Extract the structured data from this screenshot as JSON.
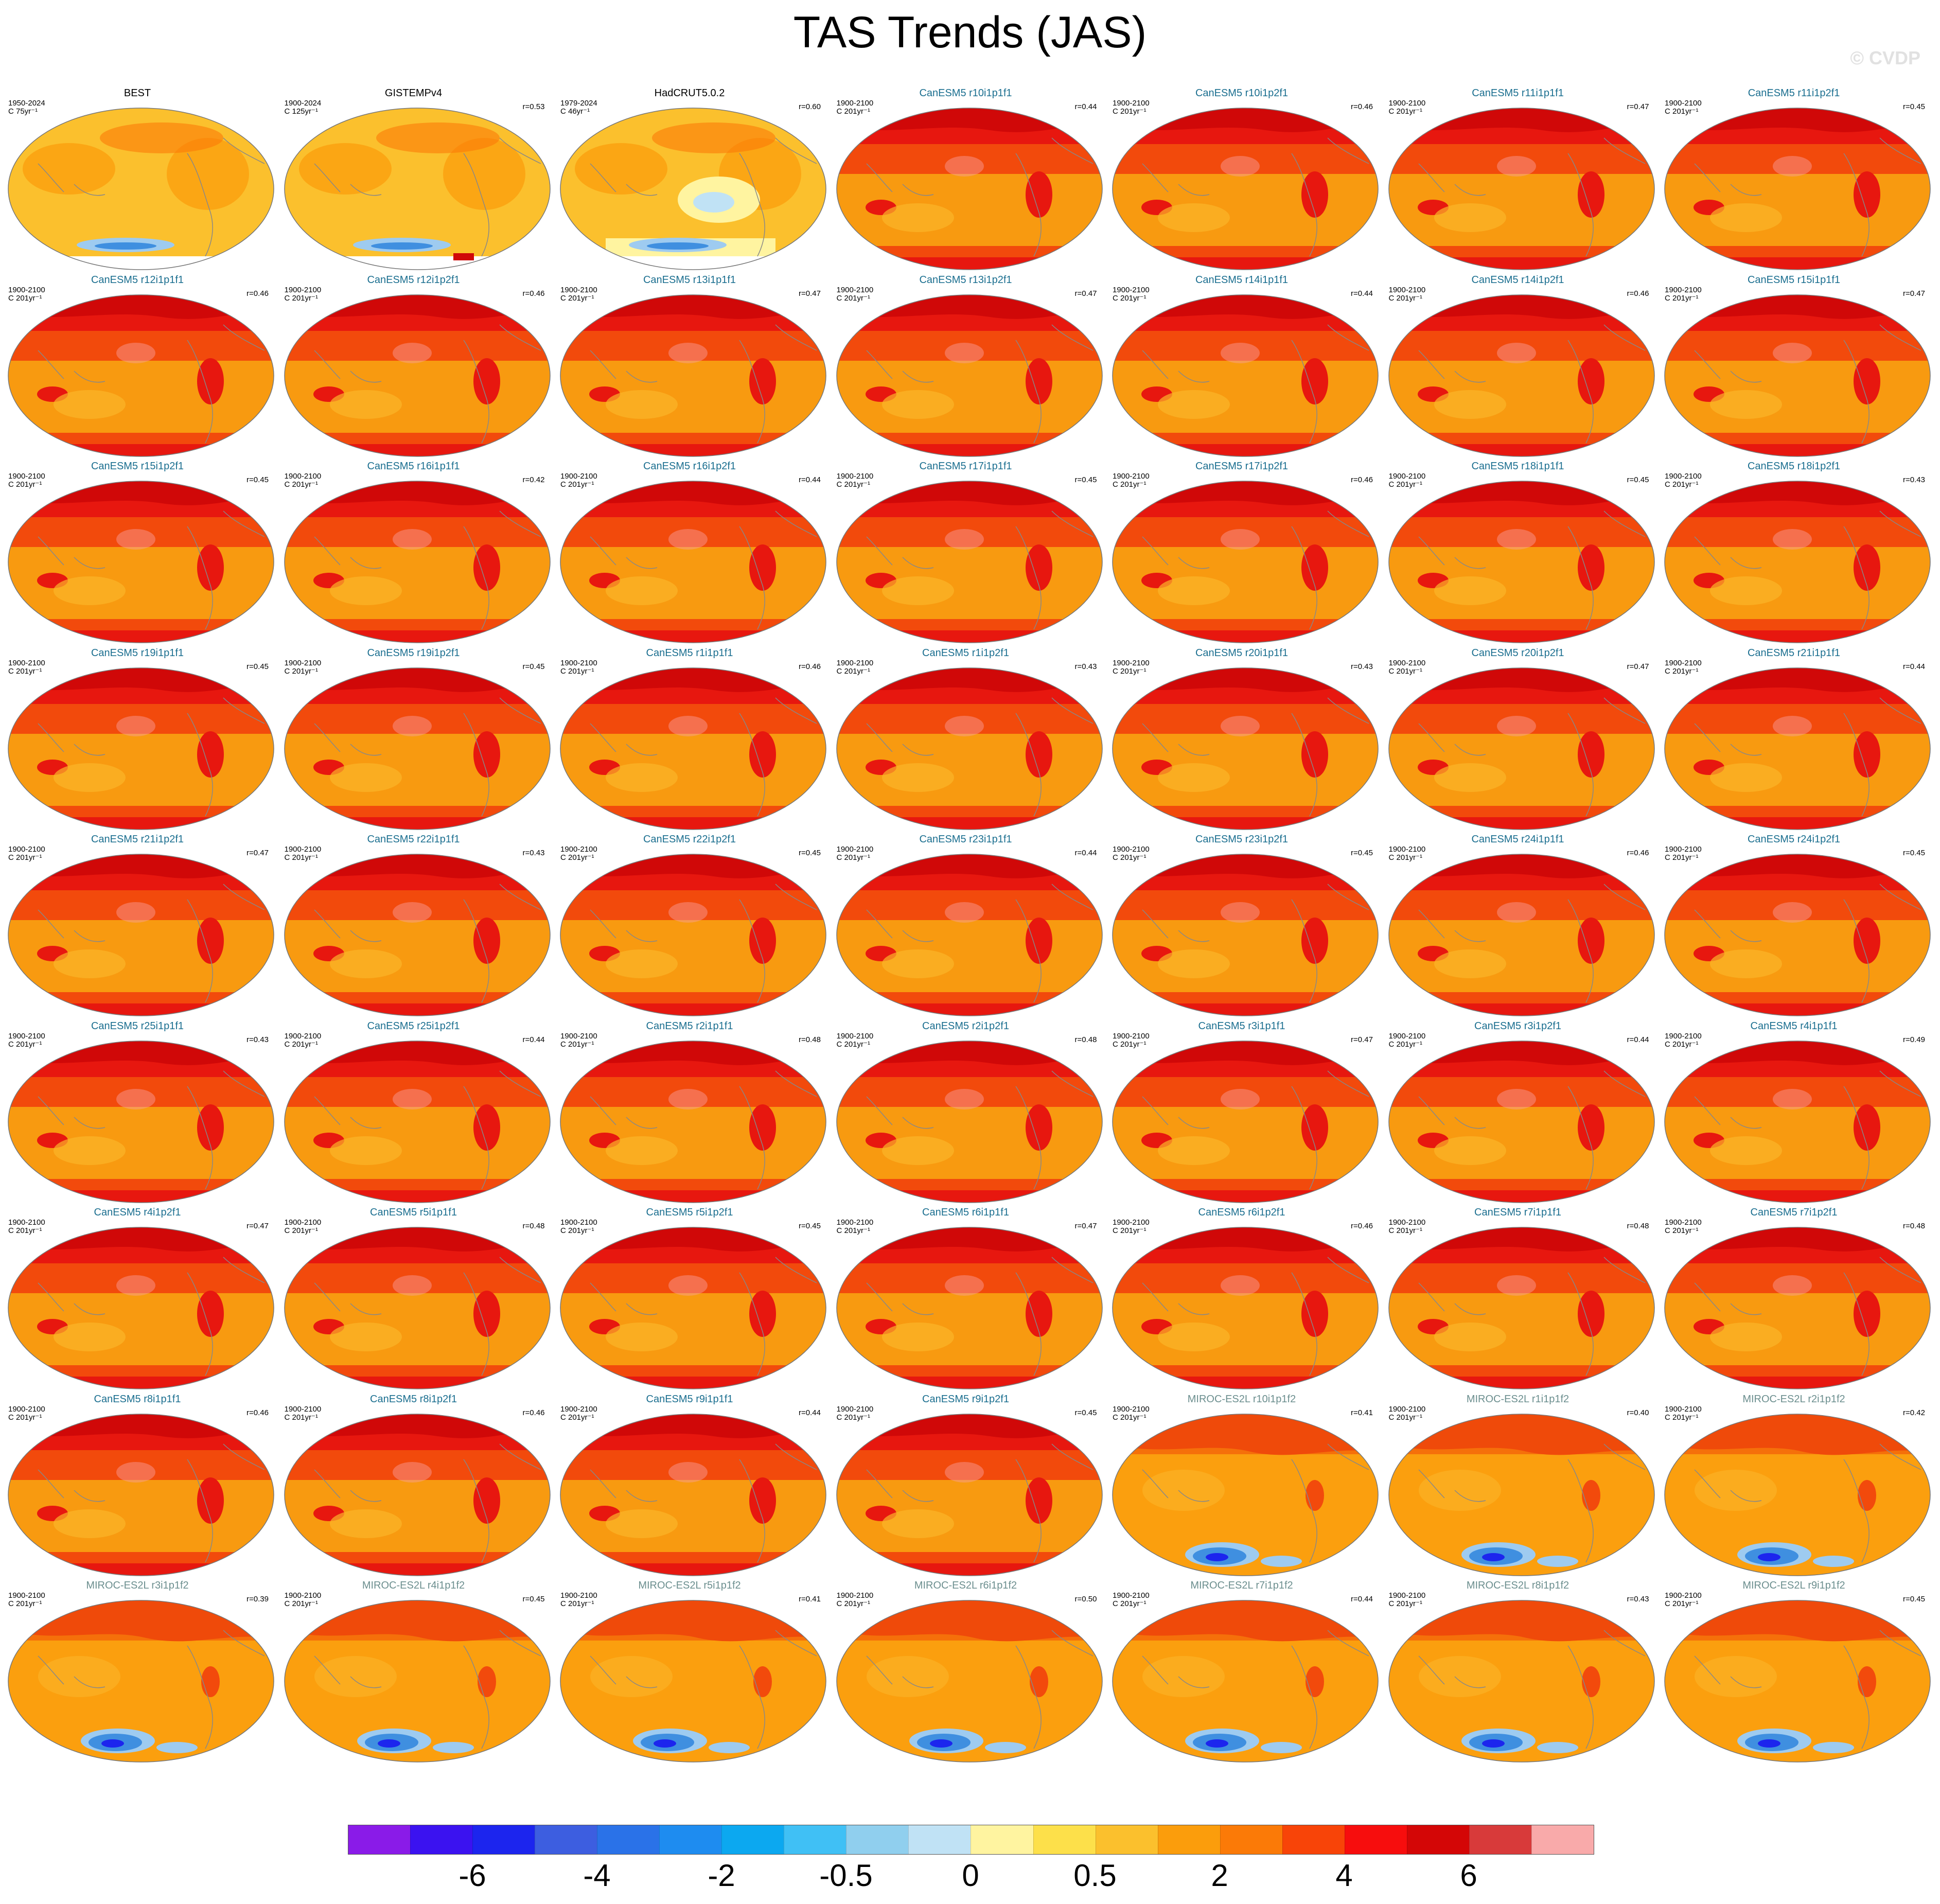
{
  "title": "TAS Trends (JAS)",
  "copyright": "© CVDP",
  "colors": {
    "cold_patch": "#3f8fe0",
    "cold_patch_light": "#9ecbf0",
    "ice_white": "#ffffff"
  },
  "panels": [
    {
      "title": "BEST",
      "title_color": "#000000",
      "period": "1950-2024",
      "units": "C 75yr⁻¹",
      "r": "",
      "type": "obs1"
    },
    {
      "title": "GISTEMPv4",
      "title_color": "#000000",
      "period": "1900-2024",
      "units": "C 125yr⁻¹",
      "r": "r=0.53",
      "type": "obs2"
    },
    {
      "title": "HadCRUT5.0.2",
      "title_color": "#000000",
      "period": "1979-2024",
      "units": "C 46yr⁻¹",
      "r": "r=0.60",
      "type": "obs3"
    },
    {
      "title": "CanESM5 r10i1p1f1",
      "title_color": "#1a6e8f",
      "period": "1900-2100",
      "units": "C 201yr⁻¹",
      "r": "r=0.44",
      "type": "can"
    },
    {
      "title": "CanESM5 r10i1p2f1",
      "title_color": "#1a6e8f",
      "period": "1900-2100",
      "units": "C 201yr⁻¹",
      "r": "r=0.46",
      "type": "can"
    },
    {
      "title": "CanESM5 r11i1p1f1",
      "title_color": "#1a6e8f",
      "period": "1900-2100",
      "units": "C 201yr⁻¹",
      "r": "r=0.47",
      "type": "can"
    },
    {
      "title": "CanESM5 r11i1p2f1",
      "title_color": "#1a6e8f",
      "period": "1900-2100",
      "units": "C 201yr⁻¹",
      "r": "r=0.45",
      "type": "can"
    },
    {
      "title": "CanESM5 r12i1p1f1",
      "title_color": "#1a6e8f",
      "period": "1900-2100",
      "units": "C 201yr⁻¹",
      "r": "r=0.46",
      "type": "can"
    },
    {
      "title": "CanESM5 r12i1p2f1",
      "title_color": "#1a6e8f",
      "period": "1900-2100",
      "units": "C 201yr⁻¹",
      "r": "r=0.46",
      "type": "can"
    },
    {
      "title": "CanESM5 r13i1p1f1",
      "title_color": "#1a6e8f",
      "period": "1900-2100",
      "units": "C 201yr⁻¹",
      "r": "r=0.47",
      "type": "can"
    },
    {
      "title": "CanESM5 r13i1p2f1",
      "title_color": "#1a6e8f",
      "period": "1900-2100",
      "units": "C 201yr⁻¹",
      "r": "r=0.47",
      "type": "can"
    },
    {
      "title": "CanESM5 r14i1p1f1",
      "title_color": "#1a6e8f",
      "period": "1900-2100",
      "units": "C 201yr⁻¹",
      "r": "r=0.44",
      "type": "can"
    },
    {
      "title": "CanESM5 r14i1p2f1",
      "title_color": "#1a6e8f",
      "period": "1900-2100",
      "units": "C 201yr⁻¹",
      "r": "r=0.46",
      "type": "can"
    },
    {
      "title": "CanESM5 r15i1p1f1",
      "title_color": "#1a6e8f",
      "period": "1900-2100",
      "units": "C 201yr⁻¹",
      "r": "r=0.47",
      "type": "can"
    },
    {
      "title": "CanESM5 r15i1p2f1",
      "title_color": "#1a6e8f",
      "period": "1900-2100",
      "units": "C 201yr⁻¹",
      "r": "r=0.45",
      "type": "can"
    },
    {
      "title": "CanESM5 r16i1p1f1",
      "title_color": "#1a6e8f",
      "period": "1900-2100",
      "units": "C 201yr⁻¹",
      "r": "r=0.42",
      "type": "can"
    },
    {
      "title": "CanESM5 r16i1p2f1",
      "title_color": "#1a6e8f",
      "period": "1900-2100",
      "units": "C 201yr⁻¹",
      "r": "r=0.44",
      "type": "can"
    },
    {
      "title": "CanESM5 r17i1p1f1",
      "title_color": "#1a6e8f",
      "period": "1900-2100",
      "units": "C 201yr⁻¹",
      "r": "r=0.45",
      "type": "can"
    },
    {
      "title": "CanESM5 r17i1p2f1",
      "title_color": "#1a6e8f",
      "period": "1900-2100",
      "units": "C 201yr⁻¹",
      "r": "r=0.46",
      "type": "can"
    },
    {
      "title": "CanESM5 r18i1p1f1",
      "title_color": "#1a6e8f",
      "period": "1900-2100",
      "units": "C 201yr⁻¹",
      "r": "r=0.45",
      "type": "can"
    },
    {
      "title": "CanESM5 r18i1p2f1",
      "title_color": "#1a6e8f",
      "period": "1900-2100",
      "units": "C 201yr⁻¹",
      "r": "r=0.43",
      "type": "can"
    },
    {
      "title": "CanESM5 r19i1p1f1",
      "title_color": "#1a6e8f",
      "period": "1900-2100",
      "units": "C 201yr⁻¹",
      "r": "r=0.45",
      "type": "can"
    },
    {
      "title": "CanESM5 r19i1p2f1",
      "title_color": "#1a6e8f",
      "period": "1900-2100",
      "units": "C 201yr⁻¹",
      "r": "r=0.45",
      "type": "can"
    },
    {
      "title": "CanESM5 r1i1p1f1",
      "title_color": "#1a6e8f",
      "period": "1900-2100",
      "units": "C 201yr⁻¹",
      "r": "r=0.46",
      "type": "can"
    },
    {
      "title": "CanESM5 r1i1p2f1",
      "title_color": "#1a6e8f",
      "period": "1900-2100",
      "units": "C 201yr⁻¹",
      "r": "r=0.43",
      "type": "can"
    },
    {
      "title": "CanESM5 r20i1p1f1",
      "title_color": "#1a6e8f",
      "period": "1900-2100",
      "units": "C 201yr⁻¹",
      "r": "r=0.43",
      "type": "can"
    },
    {
      "title": "CanESM5 r20i1p2f1",
      "title_color": "#1a6e8f",
      "period": "1900-2100",
      "units": "C 201yr⁻¹",
      "r": "r=0.47",
      "type": "can"
    },
    {
      "title": "CanESM5 r21i1p1f1",
      "title_color": "#1a6e8f",
      "period": "1900-2100",
      "units": "C 201yr⁻¹",
      "r": "r=0.44",
      "type": "can"
    },
    {
      "title": "CanESM5 r21i1p2f1",
      "title_color": "#1a6e8f",
      "period": "1900-2100",
      "units": "C 201yr⁻¹",
      "r": "r=0.47",
      "type": "can"
    },
    {
      "title": "CanESM5 r22i1p1f1",
      "title_color": "#1a6e8f",
      "period": "1900-2100",
      "units": "C 201yr⁻¹",
      "r": "r=0.43",
      "type": "can"
    },
    {
      "title": "CanESM5 r22i1p2f1",
      "title_color": "#1a6e8f",
      "period": "1900-2100",
      "units": "C 201yr⁻¹",
      "r": "r=0.45",
      "type": "can"
    },
    {
      "title": "CanESM5 r23i1p1f1",
      "title_color": "#1a6e8f",
      "period": "1900-2100",
      "units": "C 201yr⁻¹",
      "r": "r=0.44",
      "type": "can"
    },
    {
      "title": "CanESM5 r23i1p2f1",
      "title_color": "#1a6e8f",
      "period": "1900-2100",
      "units": "C 201yr⁻¹",
      "r": "r=0.45",
      "type": "can"
    },
    {
      "title": "CanESM5 r24i1p1f1",
      "title_color": "#1a6e8f",
      "period": "1900-2100",
      "units": "C 201yr⁻¹",
      "r": "r=0.46",
      "type": "can"
    },
    {
      "title": "CanESM5 r24i1p2f1",
      "title_color": "#1a6e8f",
      "period": "1900-2100",
      "units": "C 201yr⁻¹",
      "r": "r=0.45",
      "type": "can"
    },
    {
      "title": "CanESM5 r25i1p1f1",
      "title_color": "#1a6e8f",
      "period": "1900-2100",
      "units": "C 201yr⁻¹",
      "r": "r=0.43",
      "type": "can"
    },
    {
      "title": "CanESM5 r25i1p2f1",
      "title_color": "#1a6e8f",
      "period": "1900-2100",
      "units": "C 201yr⁻¹",
      "r": "r=0.44",
      "type": "can"
    },
    {
      "title": "CanESM5 r2i1p1f1",
      "title_color": "#1a6e8f",
      "period": "1900-2100",
      "units": "C 201yr⁻¹",
      "r": "r=0.48",
      "type": "can"
    },
    {
      "title": "CanESM5 r2i1p2f1",
      "title_color": "#1a6e8f",
      "period": "1900-2100",
      "units": "C 201yr⁻¹",
      "r": "r=0.48",
      "type": "can"
    },
    {
      "title": "CanESM5 r3i1p1f1",
      "title_color": "#1a6e8f",
      "period": "1900-2100",
      "units": "C 201yr⁻¹",
      "r": "r=0.47",
      "type": "can"
    },
    {
      "title": "CanESM5 r3i1p2f1",
      "title_color": "#1a6e8f",
      "period": "1900-2100",
      "units": "C 201yr⁻¹",
      "r": "r=0.44",
      "type": "can"
    },
    {
      "title": "CanESM5 r4i1p1f1",
      "title_color": "#1a6e8f",
      "period": "1900-2100",
      "units": "C 201yr⁻¹",
      "r": "r=0.49",
      "type": "can"
    },
    {
      "title": "CanESM5 r4i1p2f1",
      "title_color": "#1a6e8f",
      "period": "1900-2100",
      "units": "C 201yr⁻¹",
      "r": "r=0.47",
      "type": "can"
    },
    {
      "title": "CanESM5 r5i1p1f1",
      "title_color": "#1a6e8f",
      "period": "1900-2100",
      "units": "C 201yr⁻¹",
      "r": "r=0.48",
      "type": "can"
    },
    {
      "title": "CanESM5 r5i1p2f1",
      "title_color": "#1a6e8f",
      "period": "1900-2100",
      "units": "C 201yr⁻¹",
      "r": "r=0.45",
      "type": "can"
    },
    {
      "title": "CanESM5 r6i1p1f1",
      "title_color": "#1a6e8f",
      "period": "1900-2100",
      "units": "C 201yr⁻¹",
      "r": "r=0.47",
      "type": "can"
    },
    {
      "title": "CanESM5 r6i1p2f1",
      "title_color": "#1a6e8f",
      "period": "1900-2100",
      "units": "C 201yr⁻¹",
      "r": "r=0.46",
      "type": "can"
    },
    {
      "title": "CanESM5 r7i1p1f1",
      "title_color": "#1a6e8f",
      "period": "1900-2100",
      "units": "C 201yr⁻¹",
      "r": "r=0.48",
      "type": "can"
    },
    {
      "title": "CanESM5 r7i1p2f1",
      "title_color": "#1a6e8f",
      "period": "1900-2100",
      "units": "C 201yr⁻¹",
      "r": "r=0.48",
      "type": "can"
    },
    {
      "title": "CanESM5 r8i1p1f1",
      "title_color": "#1a6e8f",
      "period": "1900-2100",
      "units": "C 201yr⁻¹",
      "r": "r=0.46",
      "type": "can"
    },
    {
      "title": "CanESM5 r8i1p2f1",
      "title_color": "#1a6e8f",
      "period": "1900-2100",
      "units": "C 201yr⁻¹",
      "r": "r=0.46",
      "type": "can"
    },
    {
      "title": "CanESM5 r9i1p1f1",
      "title_color": "#1a6e8f",
      "period": "1900-2100",
      "units": "C 201yr⁻¹",
      "r": "r=0.44",
      "type": "can"
    },
    {
      "title": "CanESM5 r9i1p2f1",
      "title_color": "#1a6e8f",
      "period": "1900-2100",
      "units": "C 201yr⁻¹",
      "r": "r=0.45",
      "type": "can"
    },
    {
      "title": "MIROC-ES2L r10i1p1f2",
      "title_color": "#6b8e8e",
      "period": "1900-2100",
      "units": "C 201yr⁻¹",
      "r": "r=0.41",
      "type": "miroc"
    },
    {
      "title": "MIROC-ES2L r1i1p1f2",
      "title_color": "#6b8e8e",
      "period": "1900-2100",
      "units": "C 201yr⁻¹",
      "r": "r=0.40",
      "type": "miroc"
    },
    {
      "title": "MIROC-ES2L r2i1p1f2",
      "title_color": "#6b8e8e",
      "period": "1900-2100",
      "units": "C 201yr⁻¹",
      "r": "r=0.42",
      "type": "miroc"
    },
    {
      "title": "MIROC-ES2L r3i1p1f2",
      "title_color": "#6b8e8e",
      "period": "1900-2100",
      "units": "C 201yr⁻¹",
      "r": "r=0.39",
      "type": "miroc"
    },
    {
      "title": "MIROC-ES2L r4i1p1f2",
      "title_color": "#6b8e8e",
      "period": "1900-2100",
      "units": "C 201yr⁻¹",
      "r": "r=0.45",
      "type": "miroc"
    },
    {
      "title": "MIROC-ES2L r5i1p1f2",
      "title_color": "#6b8e8e",
      "period": "1900-2100",
      "units": "C 201yr⁻¹",
      "r": "r=0.41",
      "type": "miroc"
    },
    {
      "title": "MIROC-ES2L r6i1p1f2",
      "title_color": "#6b8e8e",
      "period": "1900-2100",
      "units": "C 201yr⁻¹",
      "r": "r=0.50",
      "type": "miroc"
    },
    {
      "title": "MIROC-ES2L r7i1p1f2",
      "title_color": "#6b8e8e",
      "period": "1900-2100",
      "units": "C 201yr⁻¹",
      "r": "r=0.44",
      "type": "miroc"
    },
    {
      "title": "MIROC-ES2L r8i1p1f2",
      "title_color": "#6b8e8e",
      "period": "1900-2100",
      "units": "C 201yr⁻¹",
      "r": "r=0.43",
      "type": "miroc"
    },
    {
      "title": "MIROC-ES2L r9i1p1f2",
      "title_color": "#6b8e8e",
      "period": "1900-2100",
      "units": "C 201yr⁻¹",
      "r": "r=0.45",
      "type": "miroc"
    }
  ],
  "colorbar": {
    "colors": [
      "#8a1be8",
      "#3b12f0",
      "#1c25ee",
      "#3d5ee0",
      "#2a72e8",
      "#1e8cf0",
      "#0ca8f0",
      "#40c0f5",
      "#90cfee",
      "#c0e2f5",
      "#fff4a0",
      "#fde04a",
      "#fbc02d",
      "#fb9d0c",
      "#fb7a07",
      "#f84408",
      "#f70d0d",
      "#d40606",
      "#d83a3a",
      "#f9aaaa"
    ],
    "labels": [
      "-6",
      "-4",
      "-2",
      "-0.5",
      "0",
      "0.5",
      "2",
      "4",
      "6"
    ]
  }
}
